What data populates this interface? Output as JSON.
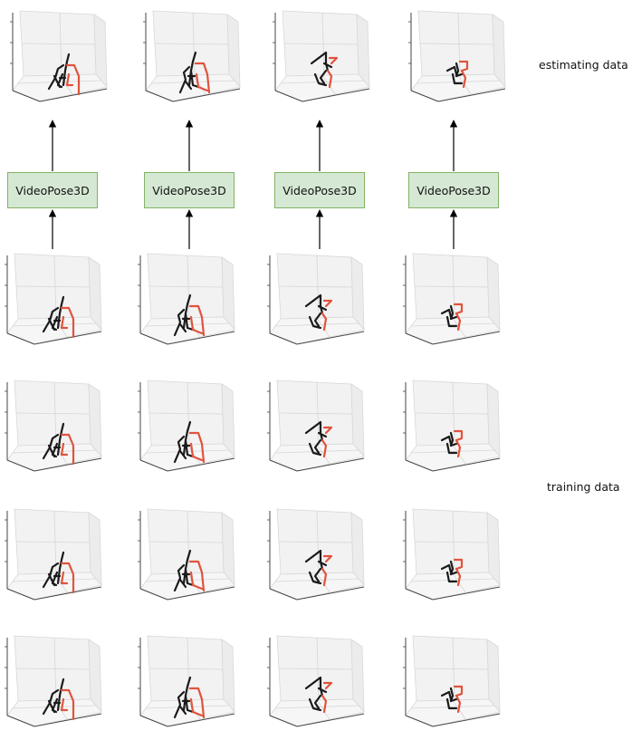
{
  "labels": {
    "estimating": "estimating data",
    "training": "training data"
  },
  "model": {
    "name": "VideoPose3D"
  },
  "figure": {
    "columns": 4,
    "training_rows": 4
  },
  "colors": {
    "box_fill": "#d5e8d4",
    "box_border": "#82b366",
    "skeleton_left": "#1a1a1a",
    "skeleton_right": "#e0533d",
    "pane_back": "#f2f2f2",
    "pane_side": "#ececec",
    "pane_floor": "#f6f6f6",
    "axis": "#444444"
  },
  "poses": [
    "stand-kick",
    "lean-forward",
    "crouch-arms-out",
    "crouch-small"
  ]
}
